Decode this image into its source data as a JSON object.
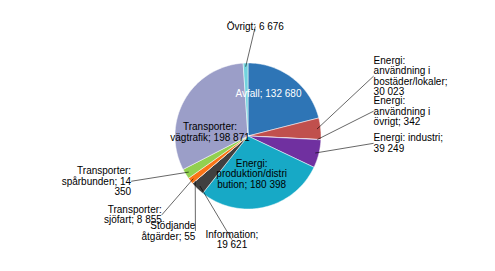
{
  "chart_data": {
    "type": "pie",
    "categories": [
      "Avfall; 132 680",
      "Energi:\nanvändning i\nbostäder/lokaler;\n30 023",
      "Energi:\nanvändning i\növrigt; 342",
      "Energi: industri;\n39 249",
      "Energi:\nproduktion/distri\nbution; 180 398",
      "Information;\n19 621",
      "Stödjande\nåtgärder; 55",
      "Transporter:\nsjöfart; 8 855",
      "Transporter:\nspårbunden; 14\n350",
      "Transporter:\nvägtrafik; 198 871",
      "Övrigt; 6 676"
    ],
    "values": [
      132680,
      30023,
      342,
      39249,
      180398,
      19621,
      55,
      8855,
      14350,
      198871,
      6676
    ],
    "colors": [
      "#2e75b6",
      "#c0504d",
      "#8064a2",
      "#7030a0",
      "#17a9c6",
      "#404040",
      "#f4afb4",
      "#f97316",
      "#92d050",
      "#9b9ec8",
      "#72d3de"
    ]
  }
}
